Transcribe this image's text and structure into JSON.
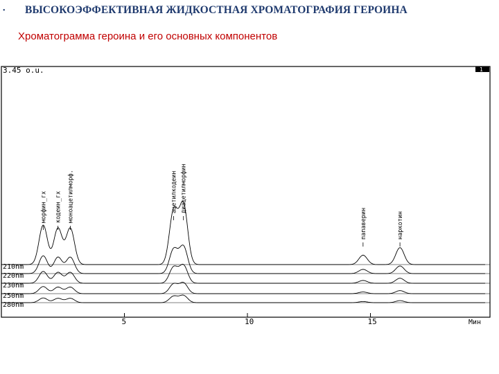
{
  "header": {
    "title": "ВЫСОКОЭФФЕКТИВНАЯ ЖИДКОСТНАЯ ХРОМАТОГРАФИЯ ГЕРОИНА",
    "subtitle": "Хроматограмма героина и его основных компонентов"
  },
  "chart_data": {
    "type": "line",
    "ylabel": "3.45 o.u.",
    "xlabel": "Мин",
    "x_ticks": [
      5,
      10,
      15
    ],
    "xlim": [
      0,
      18.9
    ],
    "ylim": [
      0,
      3.45
    ],
    "corner_marker": "1",
    "peaks": [
      {
        "name": "морфин_гх",
        "rt": 1.7,
        "height": 0.63
      },
      {
        "name": "кодеин_гх",
        "rt": 2.3,
        "height": 0.58
      },
      {
        "name": "моноацетилморф.",
        "rt": 2.8,
        "height": 0.58
      },
      {
        "name": "ацетилкодеин",
        "rt": 7.0,
        "height": 0.85
      },
      {
        "name": "диацетилморфин",
        "rt": 7.4,
        "height": 0.95
      },
      {
        "name": "папаверин",
        "rt": 14.7,
        "height": 0.15
      },
      {
        "name": "наркотин",
        "rt": 16.2,
        "height": 0.27
      }
    ],
    "series": [
      {
        "name": "210nm",
        "scale": 1.0
      },
      {
        "name": "220nm",
        "scale": 0.45
      },
      {
        "name": "230nm",
        "scale": 0.3
      },
      {
        "name": "250nm",
        "scale": 0.18
      },
      {
        "name": "280nm",
        "scale": 0.12
      }
    ]
  }
}
